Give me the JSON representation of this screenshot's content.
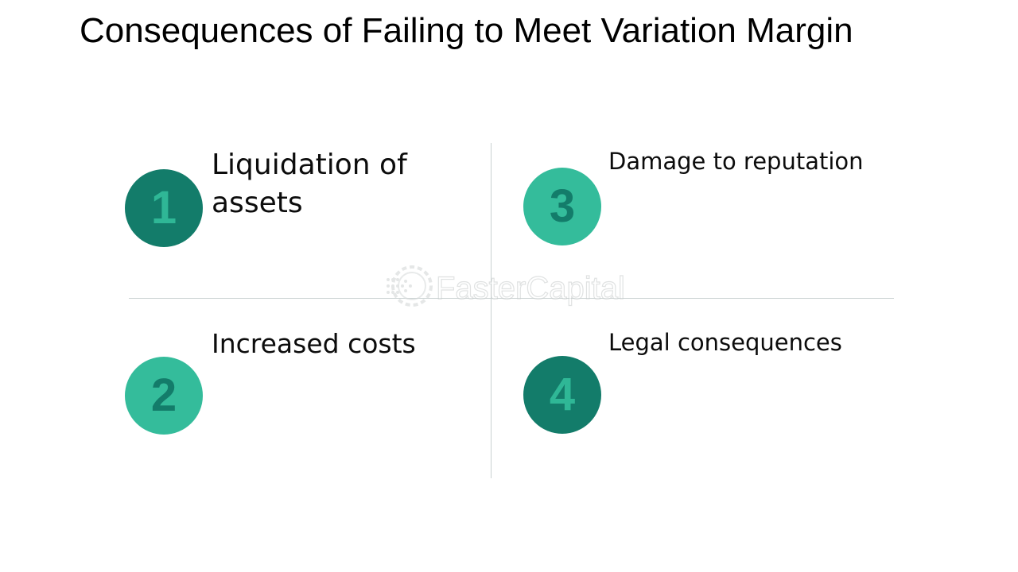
{
  "title": "Consequences of Failing to Meet Variation Margin",
  "items": [
    {
      "number": "1",
      "label": "Liquidation of assets",
      "badge_color": "#137c6a",
      "number_color": "#2fb796"
    },
    {
      "number": "2",
      "label": "Increased costs",
      "badge_color": "#34bc9b",
      "number_color": "#137c6a"
    },
    {
      "number": "3",
      "label": "Damage to reputation",
      "badge_color": "#34bc9b",
      "number_color": "#137c6a"
    },
    {
      "number": "4",
      "label": "Legal consequences",
      "badge_color": "#137c6a",
      "number_color": "#2fb796"
    }
  ],
  "watermark": {
    "text": "FasterCapital",
    "icon": "gear-dots-logo"
  }
}
